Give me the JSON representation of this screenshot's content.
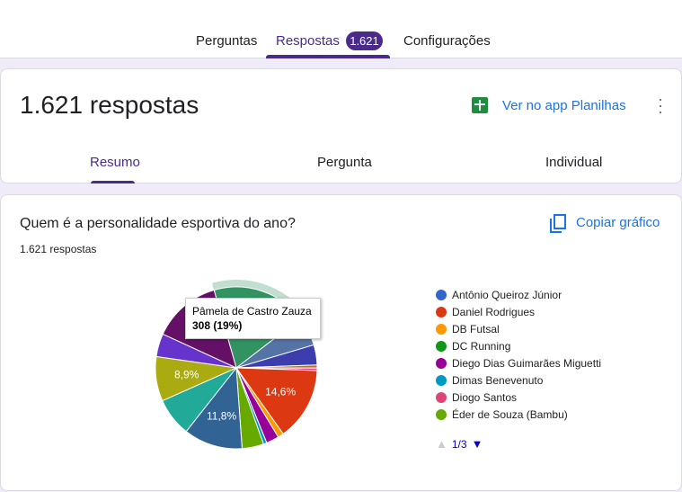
{
  "tabs": [
    {
      "label": "Perguntas"
    },
    {
      "label": "Respostas",
      "badge": "1.621",
      "active": true
    },
    {
      "label": "Configurações"
    }
  ],
  "header": {
    "title": "1.621 respostas",
    "sheets_link": "Ver no app Planilhas",
    "sheets_icon": "google-sheets-icon",
    "more_icon": "more-vert-icon"
  },
  "subtabs": [
    {
      "label": "Resumo",
      "active": true
    },
    {
      "label": "Pergunta"
    },
    {
      "label": "Individual"
    }
  ],
  "question": {
    "title": "Quem é a personalidade esportiva do ano?",
    "count": "1.621 respostas",
    "copy_label": "Copiar gráfico",
    "copy_icon": "copy-icon"
  },
  "chart_data": {
    "type": "pie",
    "total": 1621,
    "start_angle_deg": -16,
    "slices": [
      {
        "name": "Pâmela de Castro Zauza",
        "value": 308,
        "color": "#329262",
        "highlighted": true
      },
      {
        "value": 95,
        "color": "#5574a6"
      },
      {
        "value": 65,
        "color": "#3b3eac"
      },
      {
        "value": 10,
        "color": "#b77322"
      },
      {
        "value": 8,
        "color": "#f4359e"
      },
      {
        "value": 237,
        "color": "#dc3912",
        "label": "14,6%"
      },
      {
        "value": 19,
        "color": "#ff9900"
      },
      {
        "value": 41,
        "color": "#990099"
      },
      {
        "value": 11,
        "color": "#0099c6"
      },
      {
        "value": 70,
        "color": "#66aa00"
      },
      {
        "value": 191,
        "color": "#316395",
        "label": "11,8%"
      },
      {
        "value": 125,
        "color": "#22aa99"
      },
      {
        "value": 144,
        "color": "#aaaa11",
        "label": "8,9%"
      },
      {
        "value": 75,
        "color": "#6633cc"
      },
      {
        "value": 222,
        "color": "#651067"
      }
    ],
    "legend": [
      {
        "name": "Antônio Queiroz Júnior",
        "color": "#3366cc"
      },
      {
        "name": "Daniel Rodrigues",
        "color": "#dc3912"
      },
      {
        "name": "DB Futsal",
        "color": "#ff9900"
      },
      {
        "name": "DC Running",
        "color": "#109618"
      },
      {
        "name": "Diego Dias Guimarães Miguetti",
        "color": "#990099"
      },
      {
        "name": "Dimas Benevenuto",
        "color": "#0099c6"
      },
      {
        "name": "Diogo Santos",
        "color": "#dd4477"
      },
      {
        "name": "Éder de Souza (Bambu)",
        "color": "#66aa00"
      }
    ],
    "legend_page": "1/3",
    "tooltip": {
      "name": "Pâmela de Castro Zauza",
      "value": "308 (19%)"
    }
  }
}
